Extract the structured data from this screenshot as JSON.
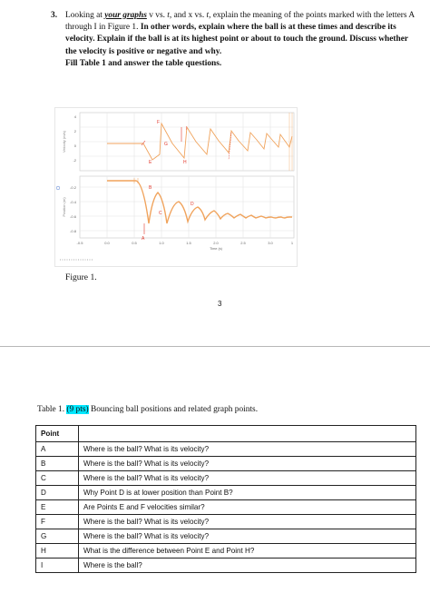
{
  "question": {
    "number": "3.",
    "p1": "Looking at ",
    "your_graphs": "your graphs",
    "p2": " v vs. ",
    "t1": "t",
    "p3": ", and x vs. ",
    "t2": "t",
    "p4": ", explain the meaning of the points marked with the letters A through I in Figure 1. ",
    "bold1": "In other words, explain where the ball is at these times and describe its velocity. Explain if the ball is at its highest point or about to touch the ground. Discuss whether the velocity is positive or negative and why.",
    "bold2": "Fill Table 1 and answer the table questions."
  },
  "figure": {
    "caption": "Figure 1.",
    "vel_ylabel": "Velocity (m/s)",
    "pos_ylabel": "Position (m)",
    "xlabel": "Time (s)",
    "vel_ticks": [
      "4",
      "2",
      "0",
      "-2"
    ],
    "pos_ticks": [
      "-0.2",
      "-0.4",
      "-0.6",
      "-0.8"
    ],
    "x_ticks": [
      "-0.5",
      "0.0",
      "0.5",
      "1.0",
      "1.5",
      "2.0",
      "2.5",
      "3.0",
      "1"
    ],
    "point_labels": {
      "A": "A",
      "B": "B",
      "C": "C",
      "D": "D",
      "E": "E",
      "F": "F",
      "G": "G",
      "H": "H",
      "I": "I"
    }
  },
  "page_number": "3",
  "table_title": {
    "prefix": "Table 1. ",
    "pts": "(9 pts)",
    "suffix": " Bouncing ball positions and related graph points."
  },
  "table": {
    "header": "Point",
    "rows": [
      {
        "point": "A",
        "question": "Where is the ball? What is its velocity?"
      },
      {
        "point": "B",
        "question": "Where is the ball? What is its velocity?"
      },
      {
        "point": "C",
        "question": "Where is the ball? What is its velocity?"
      },
      {
        "point": "D",
        "question": "Why Point D is at lower position than Point B?"
      },
      {
        "point": "E",
        "question": "Are Points E and F velocities similar?"
      },
      {
        "point": "F",
        "question": "Where is the ball? What is its velocity?"
      },
      {
        "point": "G",
        "question": "Where is the ball? What is its velocity?"
      },
      {
        "point": "H",
        "question": "What is the difference between Point E and Point H?"
      },
      {
        "point": "I",
        "question": "Where is the ball?"
      }
    ]
  },
  "colors": {
    "highlight": "#00e7ff",
    "curve": "#f0a35c",
    "marker": "#e23a2e",
    "grid": "#dcdcdc"
  }
}
